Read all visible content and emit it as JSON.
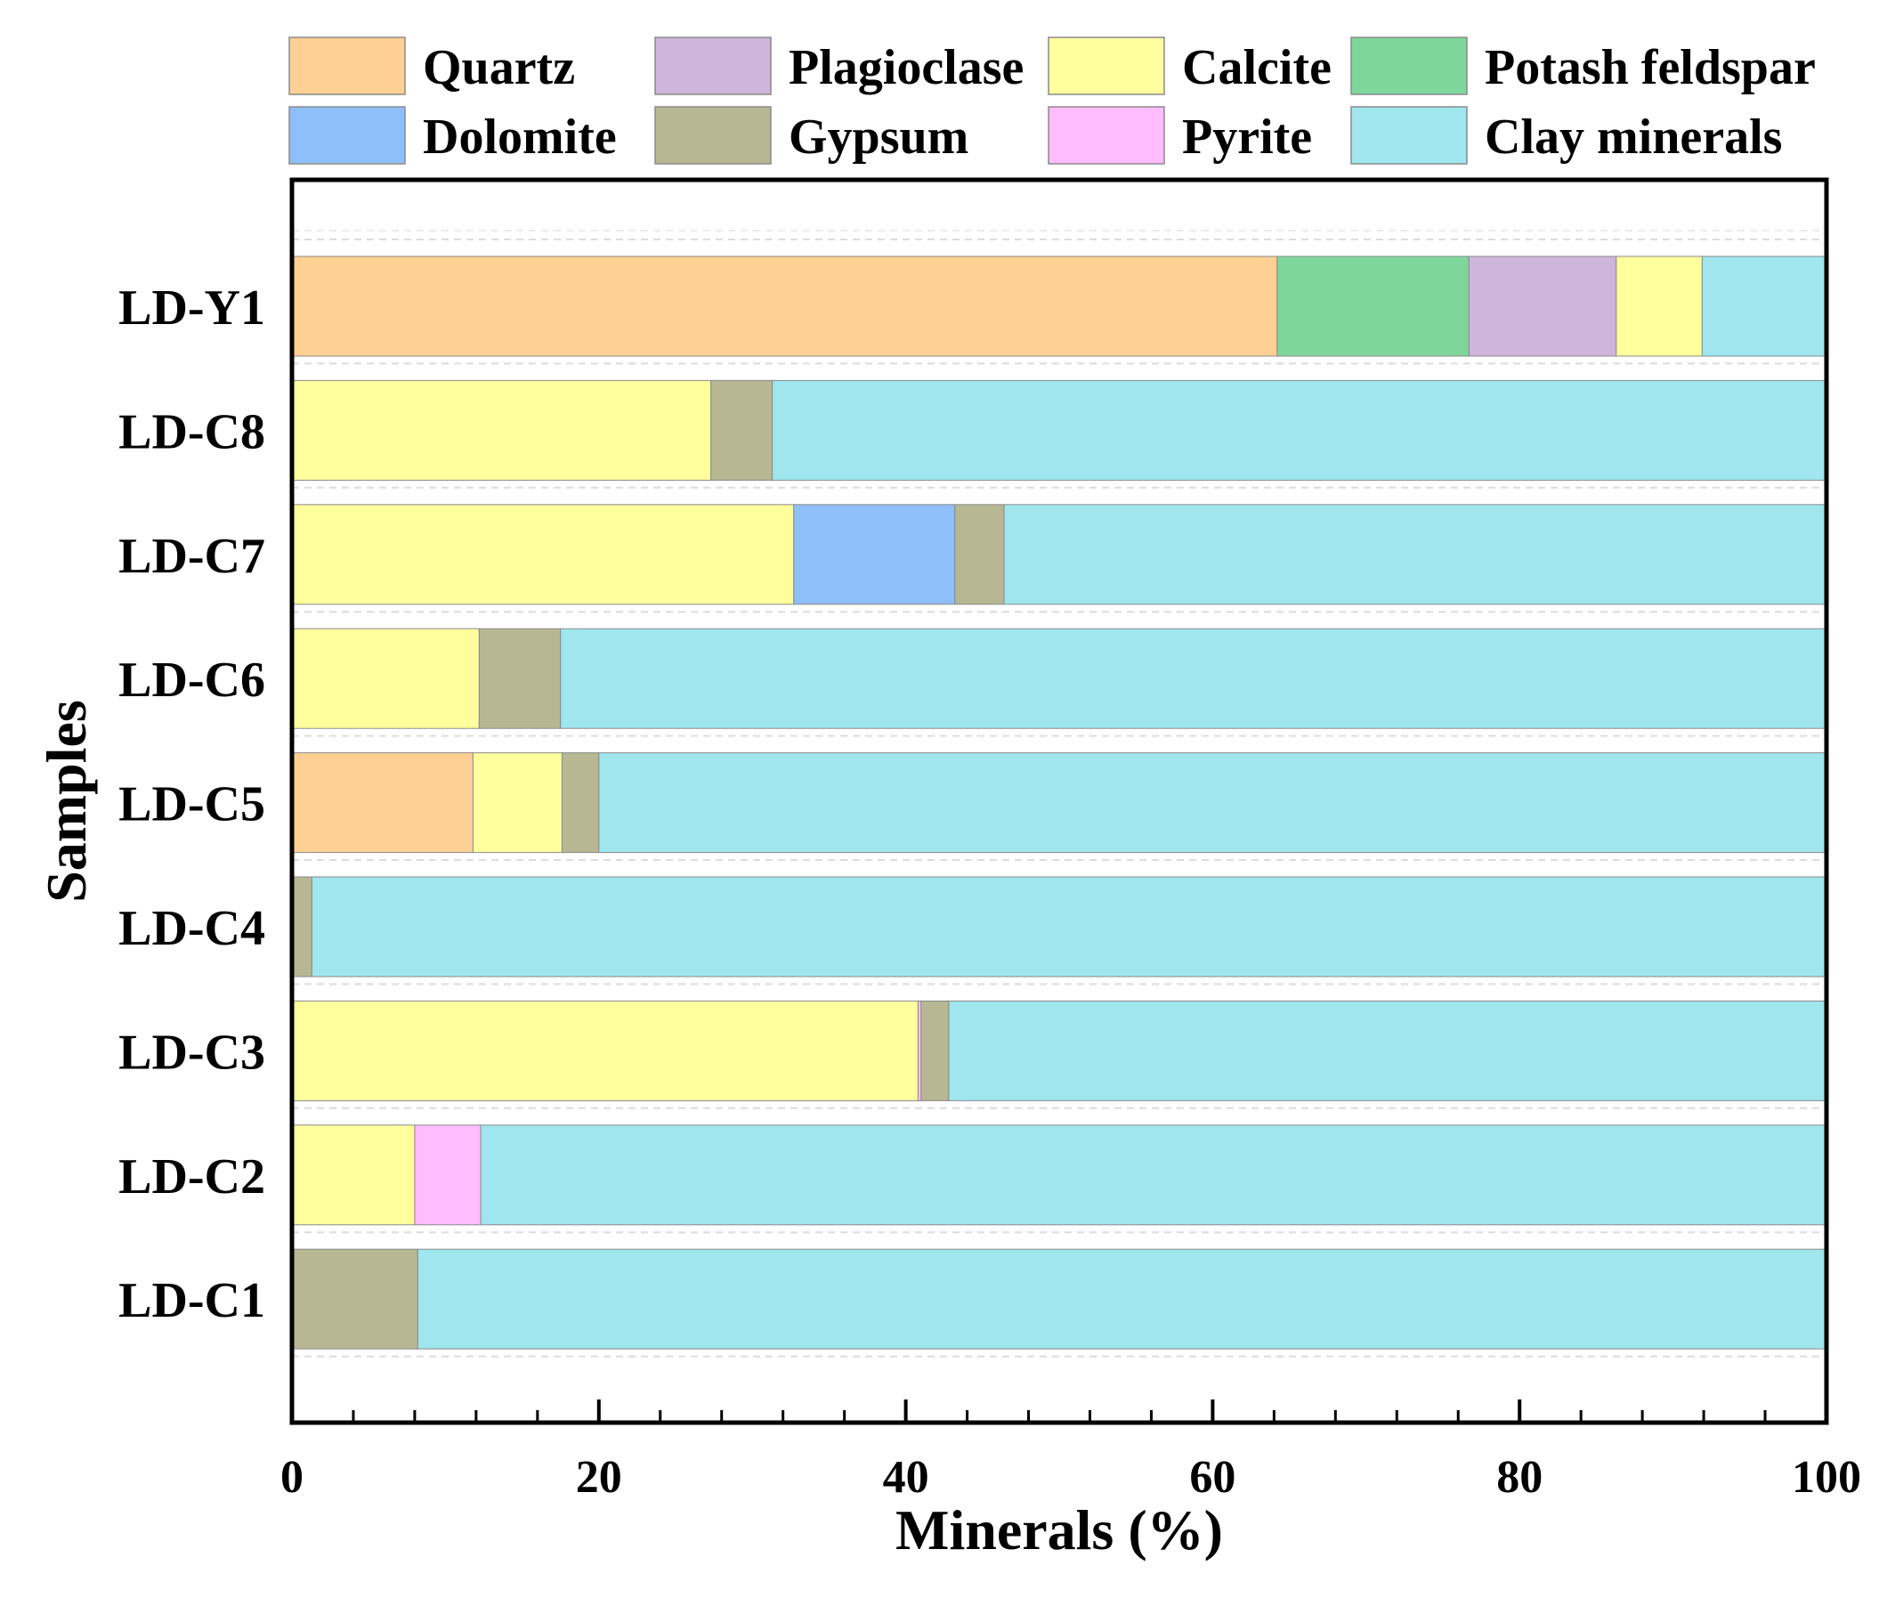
{
  "chart_data": {
    "type": "bar",
    "orientation": "horizontal",
    "stacked": true,
    "title": "",
    "xlabel": "Minerals (%)",
    "ylabel": "Samples",
    "xlim": [
      0,
      100
    ],
    "xticks": [
      0,
      20,
      40,
      60,
      80,
      100
    ],
    "xtick_labels": [
      "0",
      "20",
      "40",
      "60",
      "80",
      "100"
    ],
    "grid": "horizontal dashed",
    "legend_position": "top",
    "categories": [
      "LD-Y1",
      "LD-C8",
      "LD-C7",
      "LD-C6",
      "LD-C5",
      "LD-C4",
      "LD-C3",
      "LD-C2",
      "LD-C1"
    ],
    "series": [
      {
        "name": "Quartz",
        "color": "#FFD093",
        "values": [
          64.2,
          0,
          0,
          0,
          11.8,
          0,
          0,
          0,
          0
        ]
      },
      {
        "name": "Potash feldspar",
        "color": "#7FD69A",
        "values": [
          12.5,
          0,
          0,
          0,
          0,
          0,
          0,
          0,
          0
        ]
      },
      {
        "name": "Plagioclase",
        "color": "#CEB5DC",
        "values": [
          9.6,
          0,
          0,
          0,
          0,
          0,
          0,
          0,
          0
        ]
      },
      {
        "name": "Calcite",
        "color": "#FFFF9E",
        "values": [
          5.6,
          27.3,
          32.7,
          12.2,
          5.8,
          0,
          40.8,
          8.0,
          0
        ]
      },
      {
        "name": "Dolomite",
        "color": "#8FBFFA",
        "values": [
          0,
          0,
          10.5,
          0,
          0,
          0,
          0,
          0,
          0
        ]
      },
      {
        "name": "Pyrite",
        "color": "#FFBCFF",
        "values": [
          0,
          0,
          0,
          0,
          0,
          0,
          0.2,
          4.3,
          0
        ]
      },
      {
        "name": "Gypsum",
        "color": "#B7B794",
        "values": [
          0,
          4.0,
          3.2,
          5.3,
          2.4,
          1.3,
          1.8,
          0,
          8.2
        ]
      },
      {
        "name": "Clay minerals",
        "color": "#9FE6EE",
        "values": [
          8.1,
          68.7,
          53.6,
          82.5,
          80.0,
          98.7,
          57.2,
          87.7,
          91.8
        ]
      }
    ],
    "legend_order": [
      "Quartz",
      "Plagioclase",
      "Calcite",
      "Potash feldspar",
      "Dolomite",
      "Gypsum",
      "Pyrite",
      "Clay minerals"
    ]
  }
}
